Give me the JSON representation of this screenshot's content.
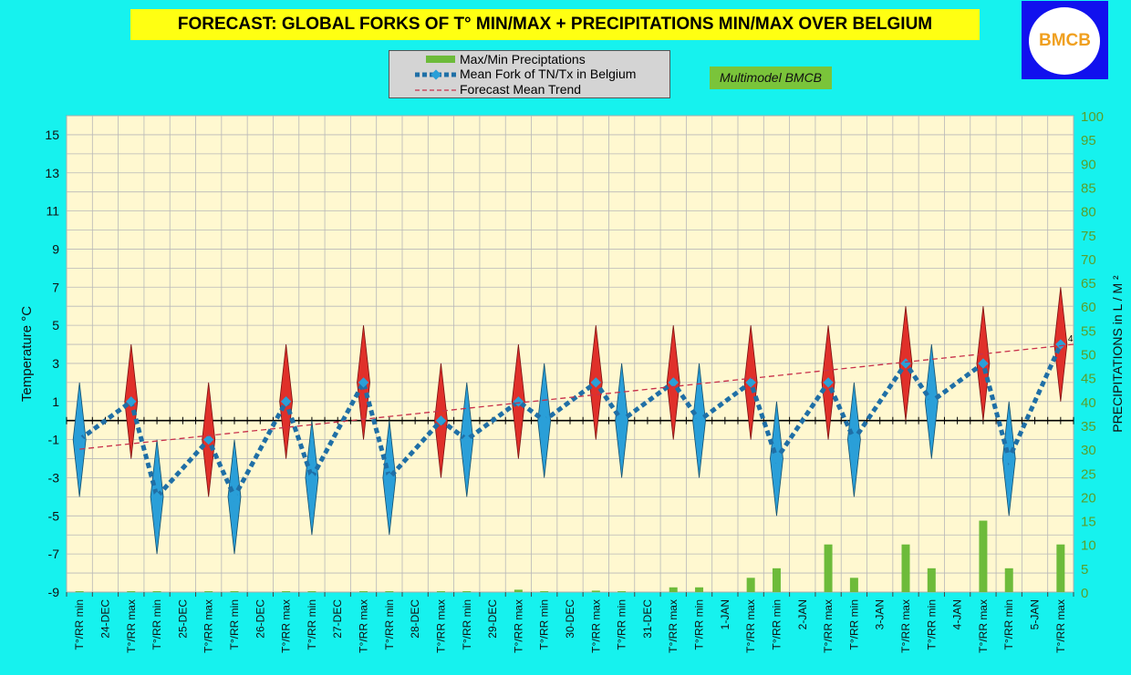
{
  "title": "FORECAST: GLOBAL FORKS OF T° MIN/MAX + PRECIPITATIONS MIN/MAX OVER  BELGIUM",
  "logo_text": "BMCB",
  "badge": "Multimodel BMCB",
  "legend": [
    {
      "label": "Max/Min Preciptations",
      "color": "#6dbb3a"
    },
    {
      "label": "Mean Fork of TN/Tx in Belgium",
      "color": "#1f6fa6"
    },
    {
      "label": "Forecast Mean Trend",
      "color": "#c8304a"
    }
  ],
  "colors": {
    "background": "#16f2ee",
    "plot": "#fff8d0",
    "grid": "#b8b8b8",
    "min_fork": "#2a9fd8",
    "max_fork": "#e0302a",
    "precip": "#6dbb3a",
    "mean_line": "#1f6fa6",
    "trend": "#c8304a",
    "right_axis": "#5a9e2a"
  },
  "chart_data": {
    "type": "line",
    "ylabel": "Temperature  °C",
    "y2label": "PRECIPITATIONS in L / M ²",
    "ylim": [
      -9,
      16
    ],
    "yticks": [
      -9,
      -7,
      -5,
      -3,
      -1,
      1,
      3,
      5,
      7,
      9,
      11,
      13,
      15
    ],
    "y2lim": [
      0,
      100
    ],
    "y2ticks": [
      0,
      5,
      10,
      15,
      20,
      25,
      30,
      35,
      40,
      45,
      50,
      55,
      60,
      65,
      70,
      75,
      80,
      85,
      90,
      95,
      100
    ],
    "categories": [
      "T°/RR min",
      "24-DEC",
      "T°/RR max",
      "T°/RR min",
      "25-DEC",
      "T°/RR max",
      "T°/RR min",
      "26-DEC",
      "T°/RR max",
      "T°/RR min",
      "27-DEC",
      "T°/RR max",
      "T°/RR min",
      "28-DEC",
      "T°/RR max",
      "T°/RR min",
      "29-DEC",
      "T°/RR max",
      "T°/RR min",
      "30-DEC",
      "T°/RR max",
      "T°/RR min",
      "31-DEC",
      "T°/RR max",
      "T°/RR min",
      "1-JAN",
      "T°/RR max",
      "T°/RR min",
      "2-JAN",
      "T°/RR max",
      "T°/RR min",
      "3-JAN",
      "T°/RR max",
      "T°/RR min",
      "4-JAN",
      "T°/RR max",
      "T°/RR min",
      "5-JAN",
      "T°/RR max"
    ],
    "days": [
      "24-DEC",
      "25-DEC",
      "26-DEC",
      "27-DEC",
      "28-DEC",
      "29-DEC",
      "30-DEC",
      "31-DEC",
      "1-JAN",
      "2-JAN",
      "3-JAN",
      "4-JAN",
      "5-JAN"
    ],
    "series": [
      {
        "name": "Mean Fork of TN/Tx in Belgium",
        "min": [
          -1,
          -4,
          -4,
          -3,
          -3,
          -1,
          0,
          0,
          0,
          -2,
          -1,
          1,
          -2
        ],
        "max": [
          1,
          -1,
          1,
          2,
          0,
          1,
          2,
          2,
          2,
          2,
          3,
          3,
          4
        ]
      },
      {
        "name": "Max/Min Preciptations",
        "min": [
          0,
          0,
          0,
          0,
          0,
          0,
          0,
          0,
          1,
          5,
          3,
          5,
          5
        ],
        "max": [
          0,
          0,
          0,
          0,
          0,
          0.5,
          0.3,
          1,
          3,
          10,
          10,
          15,
          10
        ]
      }
    ],
    "fork_ranges": {
      "min": [
        [
          -4,
          2
        ],
        [
          -7,
          -1
        ],
        [
          -7,
          -1
        ],
        [
          -6,
          0
        ],
        [
          -6,
          0
        ],
        [
          -4,
          2
        ],
        [
          -3,
          3
        ],
        [
          -3,
          3
        ],
        [
          -3,
          3
        ],
        [
          -5,
          1
        ],
        [
          -4,
          2
        ],
        [
          -2,
          4
        ],
        [
          -5,
          1
        ]
      ],
      "max": [
        [
          -2,
          4
        ],
        [
          -4,
          2
        ],
        [
          -2,
          4
        ],
        [
          -1,
          5
        ],
        [
          -3,
          3
        ],
        [
          -2,
          4
        ],
        [
          -1,
          5
        ],
        [
          -1,
          5
        ],
        [
          -1,
          5
        ],
        [
          -1,
          5
        ],
        [
          0,
          6
        ],
        [
          0,
          6
        ],
        [
          1,
          7
        ]
      ]
    },
    "trend": [
      -1.5,
      4.0
    ],
    "annotation": "4",
    "grid": true,
    "legend_position": "top-center"
  }
}
